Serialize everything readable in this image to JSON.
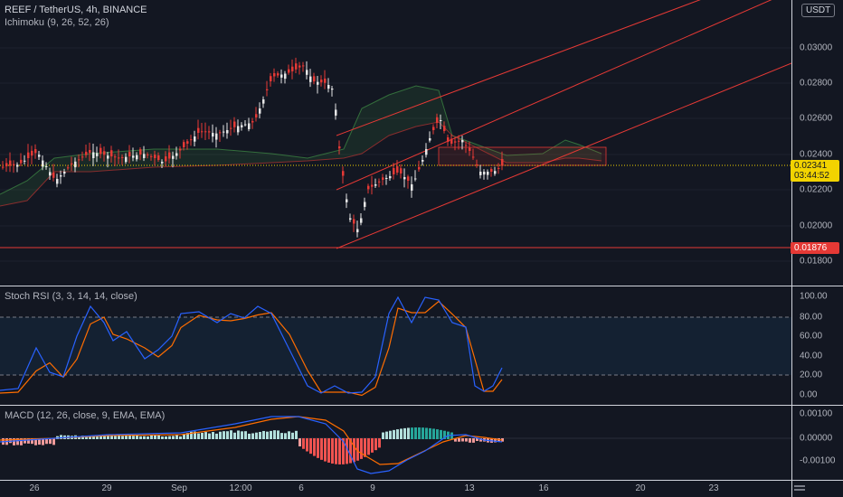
{
  "symbol_title": "REEF / TetherUS, 4h, BINANCE",
  "ichimoku_label": "Ichimoku (9, 26, 52, 26)",
  "stoch_label": "Stoch RSI (3, 3, 14, 14, close)",
  "macd_label": "MACD (12, 26, close, 9, EMA, EMA)",
  "currency": "USDT",
  "current_price": "0.02341",
  "countdown": "03:44:52",
  "level_price": "0.01876",
  "price_ticks": [
    "0.03000",
    "0.02800",
    "0.02600",
    "0.02400",
    "0.02200",
    "0.02000",
    "0.01800"
  ],
  "rsi_ticks": [
    "100.00",
    "80.00",
    "60.00",
    "40.00",
    "20.00",
    "0.00"
  ],
  "macd_ticks": [
    "0.00100",
    "0.00000",
    "-0.00100"
  ],
  "time_ticks": [
    "26",
    "29",
    "Sep",
    "12:00",
    "6",
    "9",
    "13",
    "16",
    "20",
    "23"
  ],
  "colors": {
    "up": "#e6e6e6",
    "down": "#e53935",
    "channel": "#e53935",
    "stoch_k": "#2962ff",
    "stoch_d": "#ff6d00",
    "macd": "#2962ff",
    "signal": "#ff6d00",
    "hist_up": "#26a69a",
    "hist_down": "#ef5350",
    "current": "#f2d300"
  }
}
